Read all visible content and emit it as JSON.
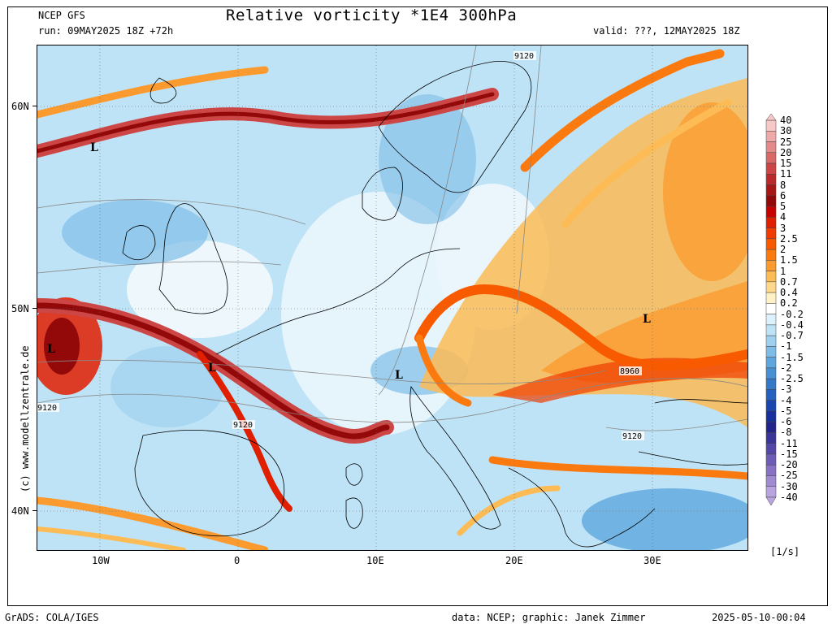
{
  "header": {
    "model": "NCEP GFS",
    "run": "run: 09MAY2025 18Z +72h",
    "title": "Relative vorticity *1E4 300hPa",
    "valid": "valid: ???, 12MAY2025 18Z"
  },
  "footer": {
    "grads": "GrADS: COLA/IGES",
    "credits": "data: NCEP; graphic: Janek Zimmer",
    "timestamp": "2025-05-10-00:04"
  },
  "watermark": "(c) www.modellzentrale.de",
  "units": "[1/s]",
  "axes": {
    "lat_labels": [
      "60N",
      "50N",
      "40N"
    ],
    "lon_labels": [
      "10W",
      "0",
      "10E",
      "20E",
      "30E"
    ]
  },
  "map_labels": {
    "lows": [
      "L",
      "L",
      "L",
      "L",
      "L"
    ],
    "contours": [
      "9120",
      "9120",
      "9120",
      "9120",
      "8960",
      "9120"
    ]
  },
  "colorbar": {
    "levels": [
      "40",
      "30",
      "25",
      "20",
      "15",
      "11",
      "8",
      "6",
      "5",
      "4",
      "3",
      "2.5",
      "2",
      "1.5",
      "1",
      "0.7",
      "0.4",
      "0.2",
      "-0.2",
      "-0.4",
      "-0.7",
      "-1",
      "-1.5",
      "-2",
      "-2.5",
      "-3",
      "-4",
      "-5",
      "-6",
      "-8",
      "-11",
      "-15",
      "-20",
      "-25",
      "-30",
      "-40"
    ],
    "colors": [
      "#f7c8c8",
      "#eea9a9",
      "#e48a8a",
      "#d96868",
      "#cc4646",
      "#bb2a2a",
      "#a81616",
      "#930909",
      "#c70000",
      "#e01f00",
      "#f03c00",
      "#f85a00",
      "#fb7a10",
      "#fb9a2e",
      "#fcbb55",
      "#fed88a",
      "#fff2c4",
      "#ffffff",
      "#dcf1fb",
      "#bfe3f6",
      "#9fd1ef",
      "#7fbde8",
      "#5ea6de",
      "#4690d3",
      "#3478c8",
      "#2460bd",
      "#1a46ae",
      "#18309c",
      "#22248a",
      "#3a3596",
      "#5448a6",
      "#6e5db6",
      "#8872c6",
      "#a08ad2",
      "#b8a4de"
    ]
  },
  "chart_data": {
    "type": "heatmap",
    "title": "Relative vorticity *1E4 300hPa",
    "quantity": "Relative vorticity",
    "level": "300hPa",
    "units": "1/s",
    "scale": "*1E4",
    "lon_range": [
      -14.5,
      37
    ],
    "lat_range": [
      38,
      63
    ],
    "lows": [
      {
        "lon": -10,
        "lat": 57.8
      },
      {
        "lon": -13.7,
        "lat": 47.8
      },
      {
        "lon": -1.8,
        "lat": 47.2
      },
      {
        "lon": 11.7,
        "lat": 46.8
      },
      {
        "lon": 29.5,
        "lat": 49.5
      }
    ],
    "height_contours_gpm": [
      9120,
      8960
    ]
  }
}
